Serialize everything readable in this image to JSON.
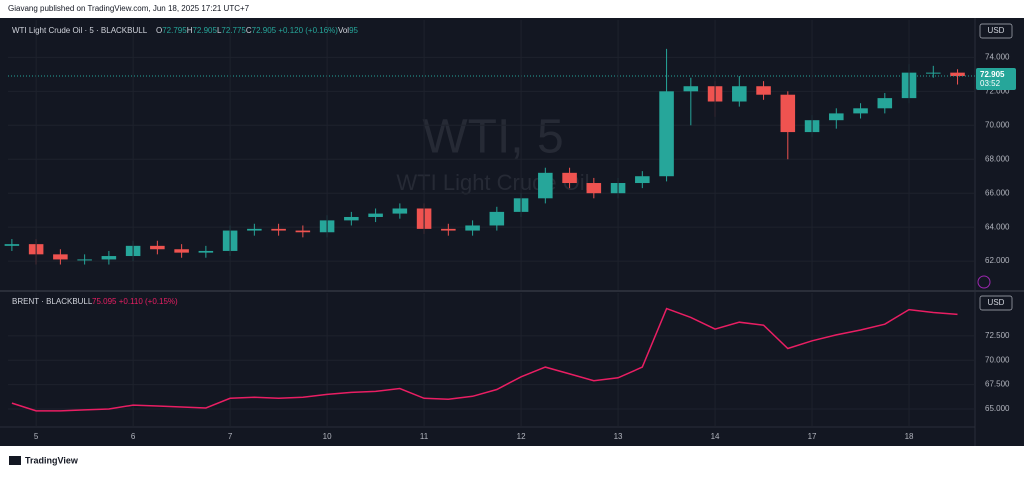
{
  "header": {
    "text": "Giavang published on TradingView.com, Jun 18, 2025 17:21 UTC+7"
  },
  "footer": {
    "text": "TradingView"
  },
  "chart_data": [
    {
      "type": "candlestick",
      "title": "WTI Light Crude Oil · 5 · BLACKBULL",
      "watermark": "WTI, 5",
      "watermark_subtitle": "WTI Light Crude Oil",
      "quote": [
        "O",
        "72.795",
        "H",
        "72.905",
        "L",
        "72.775",
        "C",
        "72.905 +0.120 (+0.16%)",
        "Vol",
        "95"
      ],
      "currency": "USD",
      "last_price": 72.905,
      "countdown": "03:52",
      "up_color": "#26a69a",
      "down_color": "#ef5350",
      "x": [
        -0.25,
        0,
        0.25,
        0.5,
        0.75,
        1,
        1.25,
        1.5,
        1.75,
        2,
        2.25,
        2.5,
        2.75,
        3,
        3.25,
        3.5,
        3.75,
        4,
        4.25,
        4.5,
        4.75,
        5,
        5.25,
        5.5,
        5.75,
        6,
        6.25,
        6.5,
        6.75,
        7,
        7.25,
        7.5,
        7.75,
        8,
        8.25,
        8.5,
        8.75,
        9,
        9.25,
        9.5
      ],
      "open": [
        62.9,
        63.0,
        62.4,
        62.1,
        62.1,
        62.3,
        62.9,
        62.7,
        62.5,
        62.6,
        63.8,
        63.9,
        63.8,
        63.7,
        64.4,
        64.6,
        64.8,
        65.1,
        63.9,
        63.8,
        64.1,
        64.9,
        65.7,
        67.2,
        66.6,
        66.0,
        66.6,
        67.0,
        72.0,
        72.3,
        71.4,
        72.3,
        71.8,
        69.6,
        70.3,
        70.7,
        71.0,
        71.6,
        73.1,
        73.1
      ],
      "high": [
        63.3,
        63.3,
        62.7,
        62.4,
        62.6,
        63.2,
        63.2,
        63.0,
        62.9,
        64.1,
        64.2,
        64.2,
        64.1,
        64.7,
        64.9,
        65.1,
        65.4,
        65.4,
        64.2,
        64.4,
        65.2,
        66.0,
        67.5,
        67.5,
        66.9,
        66.9,
        67.3,
        74.5,
        72.8,
        72.6,
        72.9,
        72.6,
        72.0,
        70.6,
        71.0,
        71.3,
        71.9,
        73.6,
        73.5,
        73.3
      ],
      "low": [
        62.6,
        61.8,
        61.8,
        61.8,
        61.8,
        62.0,
        62.4,
        62.2,
        62.2,
        62.3,
        63.5,
        63.5,
        63.4,
        63.4,
        64.1,
        64.3,
        64.5,
        63.6,
        63.5,
        63.5,
        63.8,
        64.6,
        65.4,
        66.3,
        65.7,
        65.7,
        66.3,
        66.7,
        70.0,
        70.5,
        71.1,
        71.5,
        68.0,
        69.3,
        69.8,
        70.4,
        70.7,
        71.3,
        72.8,
        72.4
      ],
      "close": [
        63.0,
        62.4,
        62.1,
        62.1,
        62.3,
        62.9,
        62.7,
        62.5,
        62.6,
        63.8,
        63.9,
        63.8,
        63.7,
        64.4,
        64.6,
        64.8,
        65.1,
        63.9,
        63.8,
        64.1,
        64.9,
        65.7,
        67.2,
        66.6,
        66.0,
        66.6,
        67.0,
        72.0,
        72.3,
        71.4,
        72.3,
        71.8,
        69.6,
        70.3,
        70.7,
        71.0,
        71.6,
        73.1,
        73.1,
        72.9
      ],
      "xlim": [
        -0.29,
        9.68
      ],
      "ylim": [
        60.3,
        76.2
      ],
      "yticks": [
        {
          "value": 62,
          "label": "62.000"
        },
        {
          "value": 64,
          "label": "64.000"
        },
        {
          "value": 66,
          "label": "66.000"
        },
        {
          "value": 68,
          "label": "68.000"
        },
        {
          "value": 70,
          "label": "70.000"
        },
        {
          "value": 72,
          "label": "72.000"
        },
        {
          "value": 74,
          "label": "74.000"
        }
      ],
      "grid": true
    },
    {
      "type": "line",
      "title": "BRENT · BLACKBULL",
      "quote": "75.095 +0.110 (+0.15%)",
      "currency": "USD",
      "x": [
        -0.25,
        0,
        0.25,
        0.5,
        0.75,
        1,
        1.25,
        1.5,
        1.75,
        2,
        2.25,
        2.5,
        2.75,
        3,
        3.25,
        3.5,
        3.75,
        4,
        4.25,
        4.5,
        4.75,
        5,
        5.25,
        5.5,
        5.75,
        6,
        6.25,
        6.5,
        6.75,
        7,
        7.25,
        7.5,
        7.75,
        8,
        8.25,
        8.5,
        8.75,
        9,
        9.25,
        9.5
      ],
      "series": [
        {
          "name": "BRENT",
          "color": "#e91e63",
          "values": [
            65.6,
            64.8,
            64.8,
            64.9,
            65.0,
            65.4,
            65.3,
            65.2,
            65.1,
            66.1,
            66.2,
            66.1,
            66.2,
            66.5,
            66.7,
            66.8,
            67.1,
            66.1,
            66.0,
            66.3,
            67.0,
            68.3,
            69.3,
            68.6,
            67.9,
            68.2,
            69.3,
            75.3,
            74.4,
            73.2,
            73.9,
            73.6,
            71.2,
            72.0,
            72.6,
            73.1,
            73.7,
            75.2,
            74.9,
            74.7
          ]
        }
      ],
      "xlim": [
        -0.29,
        9.68
      ],
      "ylim": [
        63.15,
        76.9
      ],
      "xticks": [
        {
          "value": 0,
          "label": "5"
        },
        {
          "value": 1,
          "label": "6"
        },
        {
          "value": 2,
          "label": "7"
        },
        {
          "value": 3,
          "label": "10"
        },
        {
          "value": 4,
          "label": "11"
        },
        {
          "value": 5,
          "label": "12"
        },
        {
          "value": 6,
          "label": "13"
        },
        {
          "value": 7,
          "label": "14"
        },
        {
          "value": 8,
          "label": "17"
        },
        {
          "value": 9,
          "label": "18"
        }
      ],
      "yticks": [
        {
          "value": 65,
          "label": "65.000"
        },
        {
          "value": 67.5,
          "label": "67.500"
        },
        {
          "value": 70,
          "label": "70.000"
        },
        {
          "value": 72.5,
          "label": "72.500"
        }
      ],
      "grid": true
    }
  ]
}
